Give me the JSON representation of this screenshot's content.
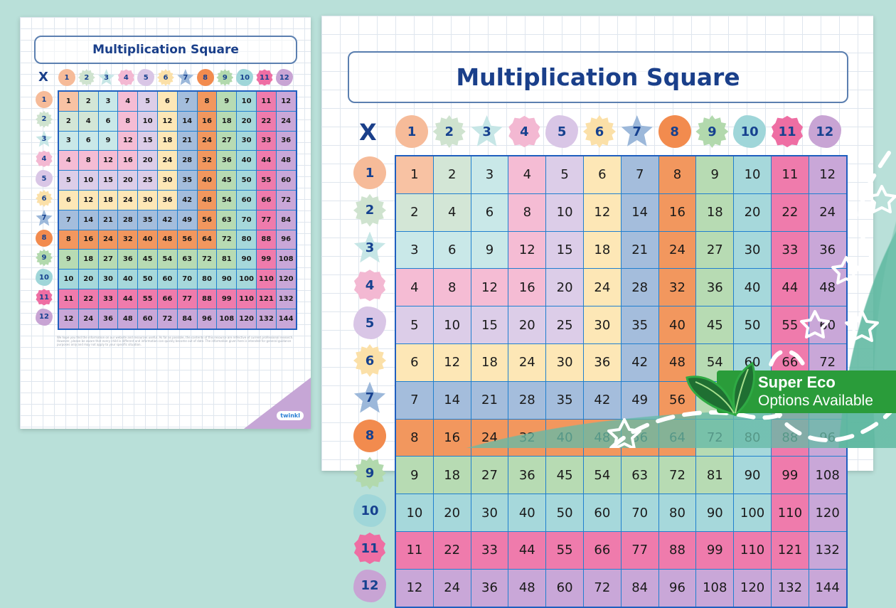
{
  "page": {
    "background": "#b9e0d9"
  },
  "worksheet": {
    "title": "Multiplication Square",
    "multiply_symbol": "X",
    "numbers": [
      "1",
      "2",
      "3",
      "4",
      "5",
      "6",
      "7",
      "8",
      "9",
      "10",
      "11",
      "12"
    ],
    "badge_colors": [
      "#f6bb99",
      "#cfe3cf",
      "#c6e6e6",
      "#f3b8d2",
      "#d9c6e6",
      "#fbe0a8",
      "#9cb8da",
      "#f28b4e",
      "#b2d9ad",
      "#9fd6d9",
      "#ee6ea3",
      "#c8a4d4"
    ],
    "badge_shapes": [
      "circle",
      "sun",
      "star",
      "flower",
      "blob",
      "sun",
      "star",
      "circle",
      "sun",
      "blob",
      "flower",
      "blob"
    ],
    "cell_colors": [
      "#f8c2a3",
      "#d3e6d6",
      "#c9e8e8",
      "#f5bcd4",
      "#dccde8",
      "#fde7b6",
      "#a4bddc",
      "#f2975e",
      "#b7dbb3",
      "#a6d8db",
      "#ef7bac",
      "#c9a7d8"
    ],
    "footnote": "We hope you find the information on our website and resources useful. As far as possible, the contents of this resource are reflective of current professional research. However, please be aware that every child is different and information can quickly become out of date. The information given here is intended for general guidance purposes only and may not apply to your specific situation.",
    "logo": "twinkl"
  },
  "eco_badge": {
    "line1": "Super Eco",
    "line2": "Options Available",
    "color": "#2a9c3a"
  }
}
